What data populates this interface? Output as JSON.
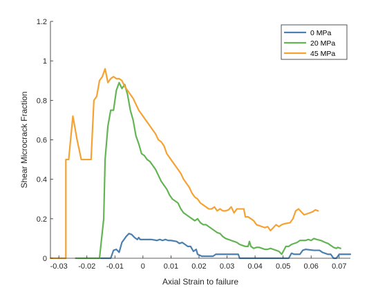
{
  "chart_data": {
    "type": "line",
    "xlabel": "Axial Strain to failure",
    "ylabel": "Shear Microcrack Fraction",
    "xlim": [
      -0.033,
      0.074
    ],
    "ylim": [
      0,
      1.2
    ],
    "x_ticks": [
      -0.03,
      -0.02,
      -0.01,
      0,
      0.01,
      0.02,
      0.03,
      0.04,
      0.05,
      0.06,
      0.07
    ],
    "x_tick_labels": [
      "-0.03",
      "-0.02",
      "-0.01",
      "0",
      "0.01",
      "0.02",
      "0.03",
      "0.04",
      "0.05",
      "0.06",
      "0.07"
    ],
    "y_ticks": [
      0,
      0.2,
      0.4,
      0.6,
      0.8,
      1,
      1.2
    ],
    "y_tick_labels": [
      "0",
      "0.2",
      "0.4",
      "0.6",
      "0.8",
      "1",
      "1.2"
    ],
    "grid": false,
    "legend_position": "top-right",
    "series": [
      {
        "name": "0 MPa",
        "color": "#4a7fb0",
        "points": [
          [
            -0.015,
            0.0
          ],
          [
            -0.0115,
            0.0
          ],
          [
            -0.0105,
            0.04
          ],
          [
            -0.0095,
            0.045
          ],
          [
            -0.0085,
            0.03
          ],
          [
            -0.0075,
            0.08
          ],
          [
            -0.006,
            0.11
          ],
          [
            -0.005,
            0.125
          ],
          [
            -0.004,
            0.12
          ],
          [
            -0.003,
            0.105
          ],
          [
            -0.002,
            0.095
          ],
          [
            -0.0015,
            0.105
          ],
          [
            -0.001,
            0.095
          ],
          [
            0.001,
            0.095
          ],
          [
            0.003,
            0.095
          ],
          [
            0.005,
            0.09
          ],
          [
            0.006,
            0.095
          ],
          [
            0.007,
            0.09
          ],
          [
            0.008,
            0.095
          ],
          [
            0.009,
            0.09
          ],
          [
            0.01,
            0.09
          ],
          [
            0.012,
            0.085
          ],
          [
            0.013,
            0.075
          ],
          [
            0.014,
            0.08
          ],
          [
            0.015,
            0.07
          ],
          [
            0.016,
            0.06
          ],
          [
            0.017,
            0.06
          ],
          [
            0.018,
            0.035
          ],
          [
            0.019,
            0.045
          ],
          [
            0.0195,
            0.02
          ],
          [
            0.021,
            0.01
          ],
          [
            0.025,
            0.01
          ],
          [
            0.026,
            0.02
          ],
          [
            0.03,
            0.02
          ],
          [
            0.034,
            0.02
          ],
          [
            0.0345,
            0.0
          ],
          [
            0.04,
            0.0
          ],
          [
            0.045,
            0.0
          ],
          [
            0.05,
            0.0
          ],
          [
            0.052,
            0.0
          ],
          [
            0.053,
            0.025
          ],
          [
            0.054,
            0.02
          ],
          [
            0.056,
            0.02
          ],
          [
            0.057,
            0.04
          ],
          [
            0.058,
            0.045
          ],
          [
            0.061,
            0.04
          ],
          [
            0.063,
            0.04
          ],
          [
            0.064,
            0.03
          ],
          [
            0.066,
            0.02
          ],
          [
            0.067,
            0.02
          ],
          [
            0.068,
            0.0
          ],
          [
            0.069,
            0.0
          ],
          [
            0.07,
            0.02
          ],
          [
            0.071,
            0.02
          ],
          [
            0.074,
            0.02
          ]
        ]
      },
      {
        "name": "20 MPa",
        "color": "#62b552",
        "points": [
          [
            -0.024,
            0.0
          ],
          [
            -0.016,
            0.0
          ],
          [
            -0.0155,
            0.0
          ],
          [
            -0.014,
            0.2
          ],
          [
            -0.0135,
            0.5
          ],
          [
            -0.0125,
            0.67
          ],
          [
            -0.0115,
            0.75
          ],
          [
            -0.0105,
            0.75
          ],
          [
            -0.0095,
            0.85
          ],
          [
            -0.0085,
            0.89
          ],
          [
            -0.0075,
            0.86
          ],
          [
            -0.0065,
            0.88
          ],
          [
            -0.0055,
            0.83
          ],
          [
            -0.0045,
            0.75
          ],
          [
            -0.0035,
            0.7
          ],
          [
            -0.0025,
            0.62
          ],
          [
            -0.0015,
            0.58
          ],
          [
            -0.0005,
            0.53
          ],
          [
            0.0005,
            0.52
          ],
          [
            0.0015,
            0.5
          ],
          [
            0.0025,
            0.49
          ],
          [
            0.0035,
            0.47
          ],
          [
            0.0045,
            0.45
          ],
          [
            0.0055,
            0.42
          ],
          [
            0.0065,
            0.39
          ],
          [
            0.0075,
            0.37
          ],
          [
            0.0085,
            0.35
          ],
          [
            0.0095,
            0.32
          ],
          [
            0.0105,
            0.3
          ],
          [
            0.0115,
            0.29
          ],
          [
            0.0125,
            0.28
          ],
          [
            0.0135,
            0.25
          ],
          [
            0.0145,
            0.23
          ],
          [
            0.0155,
            0.22
          ],
          [
            0.0165,
            0.21
          ],
          [
            0.0175,
            0.2
          ],
          [
            0.0185,
            0.19
          ],
          [
            0.0195,
            0.2
          ],
          [
            0.0205,
            0.18
          ],
          [
            0.0215,
            0.17
          ],
          [
            0.0225,
            0.17
          ],
          [
            0.0235,
            0.16
          ],
          [
            0.0245,
            0.15
          ],
          [
            0.0255,
            0.14
          ],
          [
            0.0265,
            0.13
          ],
          [
            0.0275,
            0.125
          ],
          [
            0.0285,
            0.11
          ],
          [
            0.0295,
            0.1
          ],
          [
            0.0305,
            0.095
          ],
          [
            0.0315,
            0.09
          ],
          [
            0.0325,
            0.085
          ],
          [
            0.0335,
            0.08
          ],
          [
            0.0345,
            0.07
          ],
          [
            0.0355,
            0.065
          ],
          [
            0.0365,
            0.06
          ],
          [
            0.0375,
            0.06
          ],
          [
            0.038,
            0.085
          ],
          [
            0.0385,
            0.06
          ],
          [
            0.0395,
            0.05
          ],
          [
            0.0405,
            0.055
          ],
          [
            0.0415,
            0.055
          ],
          [
            0.0425,
            0.05
          ],
          [
            0.0435,
            0.045
          ],
          [
            0.0445,
            0.045
          ],
          [
            0.0455,
            0.05
          ],
          [
            0.0465,
            0.045
          ],
          [
            0.0475,
            0.04
          ],
          [
            0.0485,
            0.035
          ],
          [
            0.0495,
            0.02
          ],
          [
            0.051,
            0.06
          ],
          [
            0.052,
            0.06
          ],
          [
            0.053,
            0.07
          ],
          [
            0.055,
            0.08
          ],
          [
            0.056,
            0.09
          ],
          [
            0.058,
            0.09
          ],
          [
            0.059,
            0.095
          ],
          [
            0.06,
            0.09
          ],
          [
            0.061,
            0.1
          ],
          [
            0.062,
            0.095
          ],
          [
            0.0635,
            0.09
          ],
          [
            0.065,
            0.08
          ],
          [
            0.066,
            0.075
          ],
          [
            0.067,
            0.065
          ],
          [
            0.068,
            0.055
          ],
          [
            0.069,
            0.05
          ],
          [
            0.0695,
            0.055
          ],
          [
            0.0705,
            0.05
          ]
        ]
      },
      {
        "name": "45 MPa",
        "color": "#f5a233",
        "points": [
          [
            -0.033,
            0.0
          ],
          [
            -0.0275,
            0.0
          ],
          [
            -0.0275,
            0.5
          ],
          [
            -0.0265,
            0.5
          ],
          [
            -0.025,
            0.72
          ],
          [
            -0.0235,
            0.6
          ],
          [
            -0.022,
            0.5
          ],
          [
            -0.021,
            0.5
          ],
          [
            -0.0185,
            0.5
          ],
          [
            -0.0175,
            0.8
          ],
          [
            -0.0165,
            0.82
          ],
          [
            -0.0155,
            0.9
          ],
          [
            -0.0145,
            0.92
          ],
          [
            -0.0135,
            0.96
          ],
          [
            -0.0125,
            0.89
          ],
          [
            -0.0115,
            0.91
          ],
          [
            -0.0105,
            0.92
          ],
          [
            -0.0095,
            0.91
          ],
          [
            -0.0085,
            0.91
          ],
          [
            -0.0075,
            0.9
          ],
          [
            -0.0065,
            0.87
          ],
          [
            -0.0055,
            0.85
          ],
          [
            -0.0045,
            0.83
          ],
          [
            -0.0035,
            0.81
          ],
          [
            -0.0025,
            0.78
          ],
          [
            -0.0015,
            0.75
          ],
          [
            -0.0005,
            0.73
          ],
          [
            0.0005,
            0.71
          ],
          [
            0.0015,
            0.69
          ],
          [
            0.0025,
            0.67
          ],
          [
            0.0035,
            0.65
          ],
          [
            0.0045,
            0.63
          ],
          [
            0.0055,
            0.6
          ],
          [
            0.0065,
            0.59
          ],
          [
            0.0075,
            0.57
          ],
          [
            0.0085,
            0.53
          ],
          [
            0.0095,
            0.51
          ],
          [
            0.0105,
            0.49
          ],
          [
            0.0115,
            0.47
          ],
          [
            0.0125,
            0.45
          ],
          [
            0.0135,
            0.43
          ],
          [
            0.0145,
            0.4
          ],
          [
            0.0155,
            0.38
          ],
          [
            0.0165,
            0.36
          ],
          [
            0.0175,
            0.33
          ],
          [
            0.0185,
            0.31
          ],
          [
            0.0195,
            0.3
          ],
          [
            0.0205,
            0.28
          ],
          [
            0.0215,
            0.27
          ],
          [
            0.0225,
            0.26
          ],
          [
            0.0235,
            0.25
          ],
          [
            0.0245,
            0.25
          ],
          [
            0.0255,
            0.26
          ],
          [
            0.0265,
            0.24
          ],
          [
            0.0275,
            0.25
          ],
          [
            0.0285,
            0.24
          ],
          [
            0.0295,
            0.24
          ],
          [
            0.0305,
            0.245
          ],
          [
            0.0315,
            0.26
          ],
          [
            0.0325,
            0.23
          ],
          [
            0.0335,
            0.25
          ],
          [
            0.035,
            0.25
          ],
          [
            0.036,
            0.25
          ],
          [
            0.0365,
            0.21
          ],
          [
            0.0375,
            0.21
          ],
          [
            0.0385,
            0.2
          ],
          [
            0.0395,
            0.19
          ],
          [
            0.0405,
            0.17
          ],
          [
            0.0415,
            0.165
          ],
          [
            0.0425,
            0.16
          ],
          [
            0.0435,
            0.155
          ],
          [
            0.0445,
            0.16
          ],
          [
            0.0455,
            0.14
          ],
          [
            0.0465,
            0.155
          ],
          [
            0.0475,
            0.17
          ],
          [
            0.0485,
            0.16
          ],
          [
            0.0495,
            0.17
          ],
          [
            0.0505,
            0.175
          ],
          [
            0.0525,
            0.18
          ],
          [
            0.0535,
            0.2
          ],
          [
            0.0545,
            0.24
          ],
          [
            0.0555,
            0.25
          ],
          [
            0.0565,
            0.235
          ],
          [
            0.0575,
            0.22
          ],
          [
            0.0595,
            0.23
          ],
          [
            0.0605,
            0.235
          ],
          [
            0.0615,
            0.245
          ],
          [
            0.0625,
            0.24
          ]
        ]
      }
    ]
  }
}
